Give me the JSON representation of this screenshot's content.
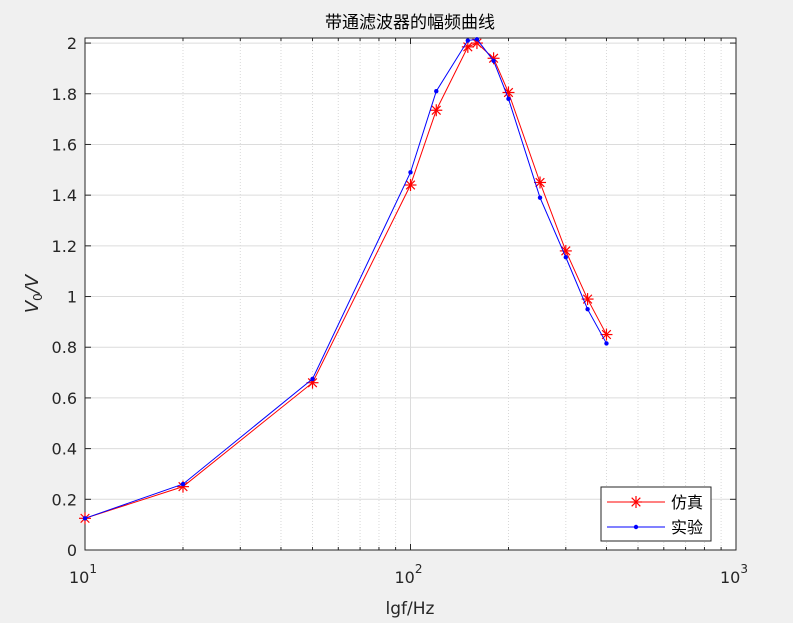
{
  "chart_data": {
    "type": "line",
    "title": "带通滤波器的幅频曲线",
    "xlabel": "lgf/Hz",
    "ylabel": "V0/V",
    "ylabel_parts": {
      "base": "V",
      "sub": "0",
      "tail": "/V"
    },
    "xscale": "log",
    "xlim": [
      10,
      1000
    ],
    "ylim": [
      0,
      2.02
    ],
    "xticks": [
      {
        "value": 10,
        "base": "10",
        "exp": "1"
      },
      {
        "value": 100,
        "base": "10",
        "exp": "2"
      },
      {
        "value": 1000,
        "base": "10",
        "exp": "3"
      }
    ],
    "yticks": [
      {
        "value": 0,
        "label": "0"
      },
      {
        "value": 0.2,
        "label": "0.2"
      },
      {
        "value": 0.4,
        "label": "0.4"
      },
      {
        "value": 0.6,
        "label": "0.6"
      },
      {
        "value": 0.8,
        "label": "0.8"
      },
      {
        "value": 1.0,
        "label": "1"
      },
      {
        "value": 1.2,
        "label": "1.2"
      },
      {
        "value": 1.4,
        "label": "1.4"
      },
      {
        "value": 1.6,
        "label": "1.6"
      },
      {
        "value": 1.8,
        "label": "1.8"
      },
      {
        "value": 2.0,
        "label": "2"
      }
    ],
    "grid": true,
    "minor_grid": true,
    "legend_position": "bottom-right",
    "series": [
      {
        "name": "仿真",
        "color": "#ff0000",
        "marker": "asterisk",
        "x": [
          10,
          20,
          50,
          100,
          120,
          150,
          160,
          180,
          200,
          250,
          300,
          350,
          400
        ],
        "y": [
          0.125,
          0.25,
          0.66,
          1.44,
          1.735,
          1.985,
          2.0,
          1.94,
          1.805,
          1.45,
          1.18,
          0.99,
          0.85
        ]
      },
      {
        "name": "实验",
        "color": "#0000ff",
        "marker": "dot",
        "x": [
          10,
          20,
          50,
          100,
          120,
          150,
          160,
          180,
          200,
          250,
          300,
          350,
          400
        ],
        "y": [
          0.125,
          0.26,
          0.675,
          1.49,
          1.81,
          2.01,
          2.015,
          1.93,
          1.78,
          1.39,
          1.155,
          0.95,
          0.815
        ]
      }
    ]
  }
}
